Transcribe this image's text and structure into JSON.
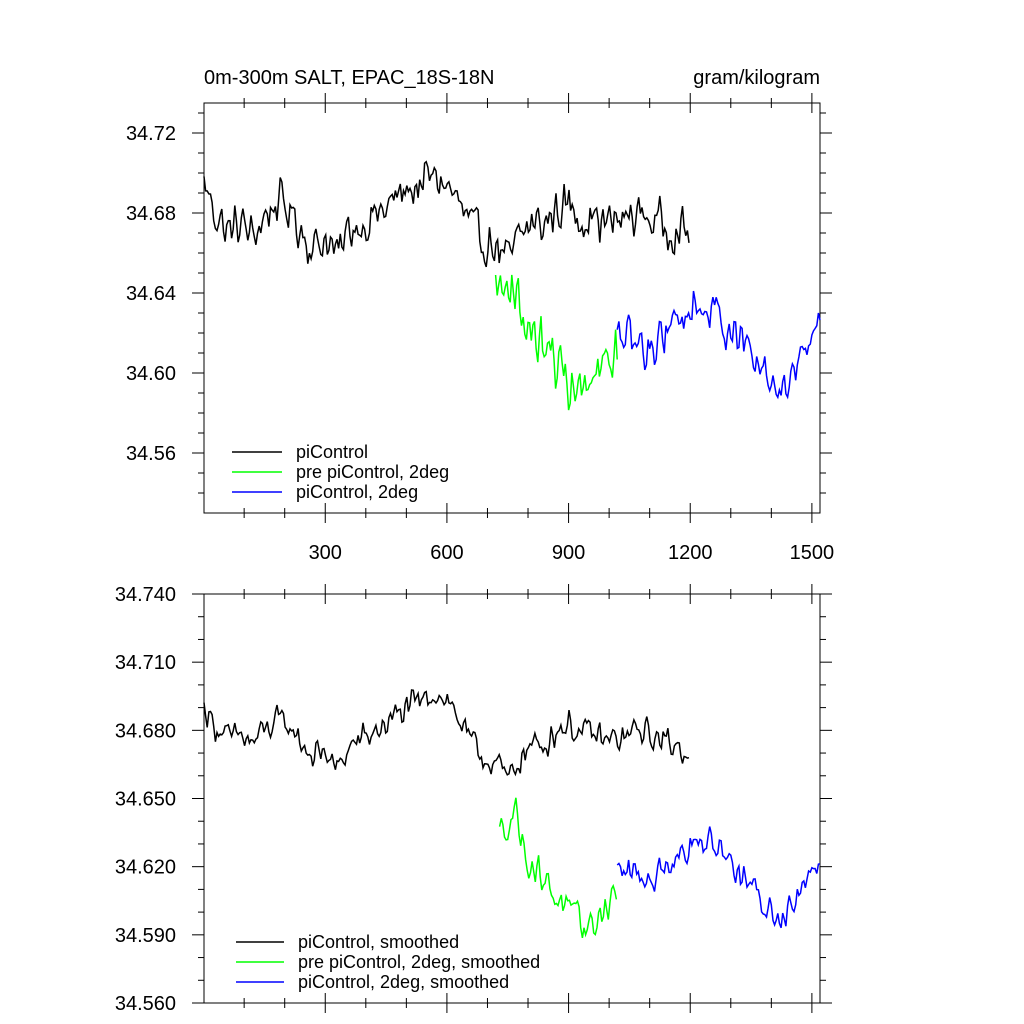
{
  "chart_data": [
    {
      "type": "line",
      "title_left": "0m-300m SALT, EPAC_18S-18N",
      "title_right": "gram/kilogram",
      "xlabel": "",
      "ylabel": "",
      "xlim": [
        1,
        1520
      ],
      "ylim": [
        34.53,
        34.735
      ],
      "xticks": [
        300,
        600,
        900,
        1200,
        1500
      ],
      "xtick_labels": [
        "300",
        "600",
        "900",
        "1200",
        "1500"
      ],
      "yticks": [
        34.56,
        34.6,
        34.64,
        34.68,
        34.72
      ],
      "ytick_labels": [
        "34.56",
        "34.60",
        "34.64",
        "34.68",
        "34.72"
      ],
      "legend_position": "bottom-left",
      "series": [
        {
          "name": "piControl",
          "color": "#000000",
          "x_start": 1,
          "x_end": 1200,
          "points": [
            [
              1,
              34.695
            ],
            [
              30,
              34.68
            ],
            [
              60,
              34.67
            ],
            [
              90,
              34.675
            ],
            [
              120,
              34.668
            ],
            [
              150,
              34.678
            ],
            [
              180,
              34.685
            ],
            [
              210,
              34.682
            ],
            [
              240,
              34.672
            ],
            [
              270,
              34.662
            ],
            [
              300,
              34.668
            ],
            [
              330,
              34.658
            ],
            [
              360,
              34.672
            ],
            [
              390,
              34.675
            ],
            [
              420,
              34.678
            ],
            [
              450,
              34.682
            ],
            [
              480,
              34.688
            ],
            [
              510,
              34.692
            ],
            [
              540,
              34.695
            ],
            [
              570,
              34.698
            ],
            [
              600,
              34.694
            ],
            [
              630,
              34.684
            ],
            [
              660,
              34.672
            ],
            [
              690,
              34.666
            ],
            [
              720,
              34.664
            ],
            [
              750,
              34.655
            ],
            [
              780,
              34.668
            ],
            [
              810,
              34.675
            ],
            [
              840,
              34.674
            ],
            [
              870,
              34.682
            ],
            [
              900,
              34.684
            ],
            [
              930,
              34.678
            ],
            [
              960,
              34.679
            ],
            [
              990,
              34.674
            ],
            [
              1020,
              34.676
            ],
            [
              1050,
              34.678
            ],
            [
              1080,
              34.68
            ],
            [
              1110,
              34.676
            ],
            [
              1140,
              34.674
            ],
            [
              1170,
              34.672
            ],
            [
              1200,
              34.668
            ]
          ]
        },
        {
          "name": "pre piControl, 2deg",
          "color": "#00ff00",
          "x_start": 720,
          "x_end": 1020,
          "points": [
            [
              720,
              34.645
            ],
            [
              740,
              34.64
            ],
            [
              760,
              34.648
            ],
            [
              780,
              34.632
            ],
            [
              800,
              34.622
            ],
            [
              820,
              34.618
            ],
            [
              840,
              34.612
            ],
            [
              860,
              34.608
            ],
            [
              880,
              34.602
            ],
            [
              900,
              34.596
            ],
            [
              920,
              34.592
            ],
            [
              940,
              34.59
            ],
            [
              960,
              34.594
            ],
            [
              980,
              34.6
            ],
            [
              1000,
              34.605
            ],
            [
              1020,
              34.61
            ]
          ]
        },
        {
          "name": "piControl, 2deg",
          "color": "#0000ff",
          "x_start": 1020,
          "x_end": 1520,
          "points": [
            [
              1020,
              34.618
            ],
            [
              1060,
              34.615
            ],
            [
              1100,
              34.612
            ],
            [
              1140,
              34.622
            ],
            [
              1180,
              34.628
            ],
            [
              1220,
              34.634
            ],
            [
              1260,
              34.63
            ],
            [
              1300,
              34.622
            ],
            [
              1340,
              34.612
            ],
            [
              1380,
              34.6
            ],
            [
              1420,
              34.592
            ],
            [
              1460,
              34.605
            ],
            [
              1500,
              34.62
            ],
            [
              1520,
              34.625
            ]
          ]
        }
      ]
    },
    {
      "type": "line",
      "xlabel": "",
      "ylabel": "",
      "xlim": [
        1,
        1520
      ],
      "ylim": [
        34.56,
        34.74
      ],
      "xticks": [
        300,
        600,
        900,
        1200,
        1500
      ],
      "yticks": [
        34.56,
        34.59,
        34.62,
        34.65,
        34.68,
        34.71,
        34.74
      ],
      "ytick_labels": [
        "34.560",
        "34.590",
        "34.620",
        "34.650",
        "34.680",
        "34.710",
        "34.740"
      ],
      "legend_position": "bottom-left",
      "series": [
        {
          "name": "piControl, smoothed",
          "color": "#000000",
          "x_start": 1,
          "x_end": 1200,
          "points": [
            [
              1,
              34.69
            ],
            [
              30,
              34.682
            ],
            [
              60,
              34.676
            ],
            [
              90,
              34.678
            ],
            [
              120,
              34.674
            ],
            [
              150,
              34.68
            ],
            [
              180,
              34.684
            ],
            [
              210,
              34.682
            ],
            [
              240,
              34.675
            ],
            [
              270,
              34.668
            ],
            [
              300,
              34.671
            ],
            [
              330,
              34.662
            ],
            [
              360,
              34.673
            ],
            [
              390,
              34.676
            ],
            [
              420,
              34.679
            ],
            [
              450,
              34.683
            ],
            [
              480,
              34.687
            ],
            [
              510,
              34.69
            ],
            [
              540,
              34.693
            ],
            [
              570,
              34.697
            ],
            [
              600,
              34.694
            ],
            [
              630,
              34.685
            ],
            [
              660,
              34.674
            ],
            [
              690,
              34.668
            ],
            [
              720,
              34.666
            ],
            [
              750,
              34.658
            ],
            [
              780,
              34.668
            ],
            [
              810,
              34.673
            ],
            [
              840,
              34.674
            ],
            [
              870,
              34.68
            ],
            [
              900,
              34.683
            ],
            [
              930,
              34.678
            ],
            [
              960,
              34.679
            ],
            [
              990,
              34.675
            ],
            [
              1020,
              34.676
            ],
            [
              1050,
              34.678
            ],
            [
              1080,
              34.68
            ],
            [
              1110,
              34.677
            ],
            [
              1140,
              34.675
            ],
            [
              1170,
              34.673
            ],
            [
              1200,
              34.671
            ]
          ]
        },
        {
          "name": "pre piControl, 2deg, smoothed",
          "color": "#00ff00",
          "x_start": 730,
          "x_end": 1020,
          "points": [
            [
              730,
              34.635
            ],
            [
              750,
              34.64
            ],
            [
              770,
              34.645
            ],
            [
              790,
              34.628
            ],
            [
              810,
              34.62
            ],
            [
              830,
              34.617
            ],
            [
              850,
              34.612
            ],
            [
              870,
              34.607
            ],
            [
              890,
              34.602
            ],
            [
              910,
              34.598
            ],
            [
              930,
              34.595
            ],
            [
              950,
              34.593
            ],
            [
              970,
              34.597
            ],
            [
              990,
              34.602
            ],
            [
              1010,
              34.607
            ],
            [
              1020,
              34.61
            ]
          ]
        },
        {
          "name": "piControl, 2deg, smoothed",
          "color": "#0000ff",
          "x_start": 1020,
          "x_end": 1520,
          "points": [
            [
              1020,
              34.618
            ],
            [
              1060,
              34.617
            ],
            [
              1100,
              34.614
            ],
            [
              1140,
              34.622
            ],
            [
              1180,
              34.627
            ],
            [
              1220,
              34.632
            ],
            [
              1260,
              34.63
            ],
            [
              1300,
              34.623
            ],
            [
              1340,
              34.613
            ],
            [
              1380,
              34.604
            ],
            [
              1420,
              34.597
            ],
            [
              1460,
              34.607
            ],
            [
              1500,
              34.62
            ],
            [
              1520,
              34.624
            ]
          ]
        }
      ]
    }
  ]
}
